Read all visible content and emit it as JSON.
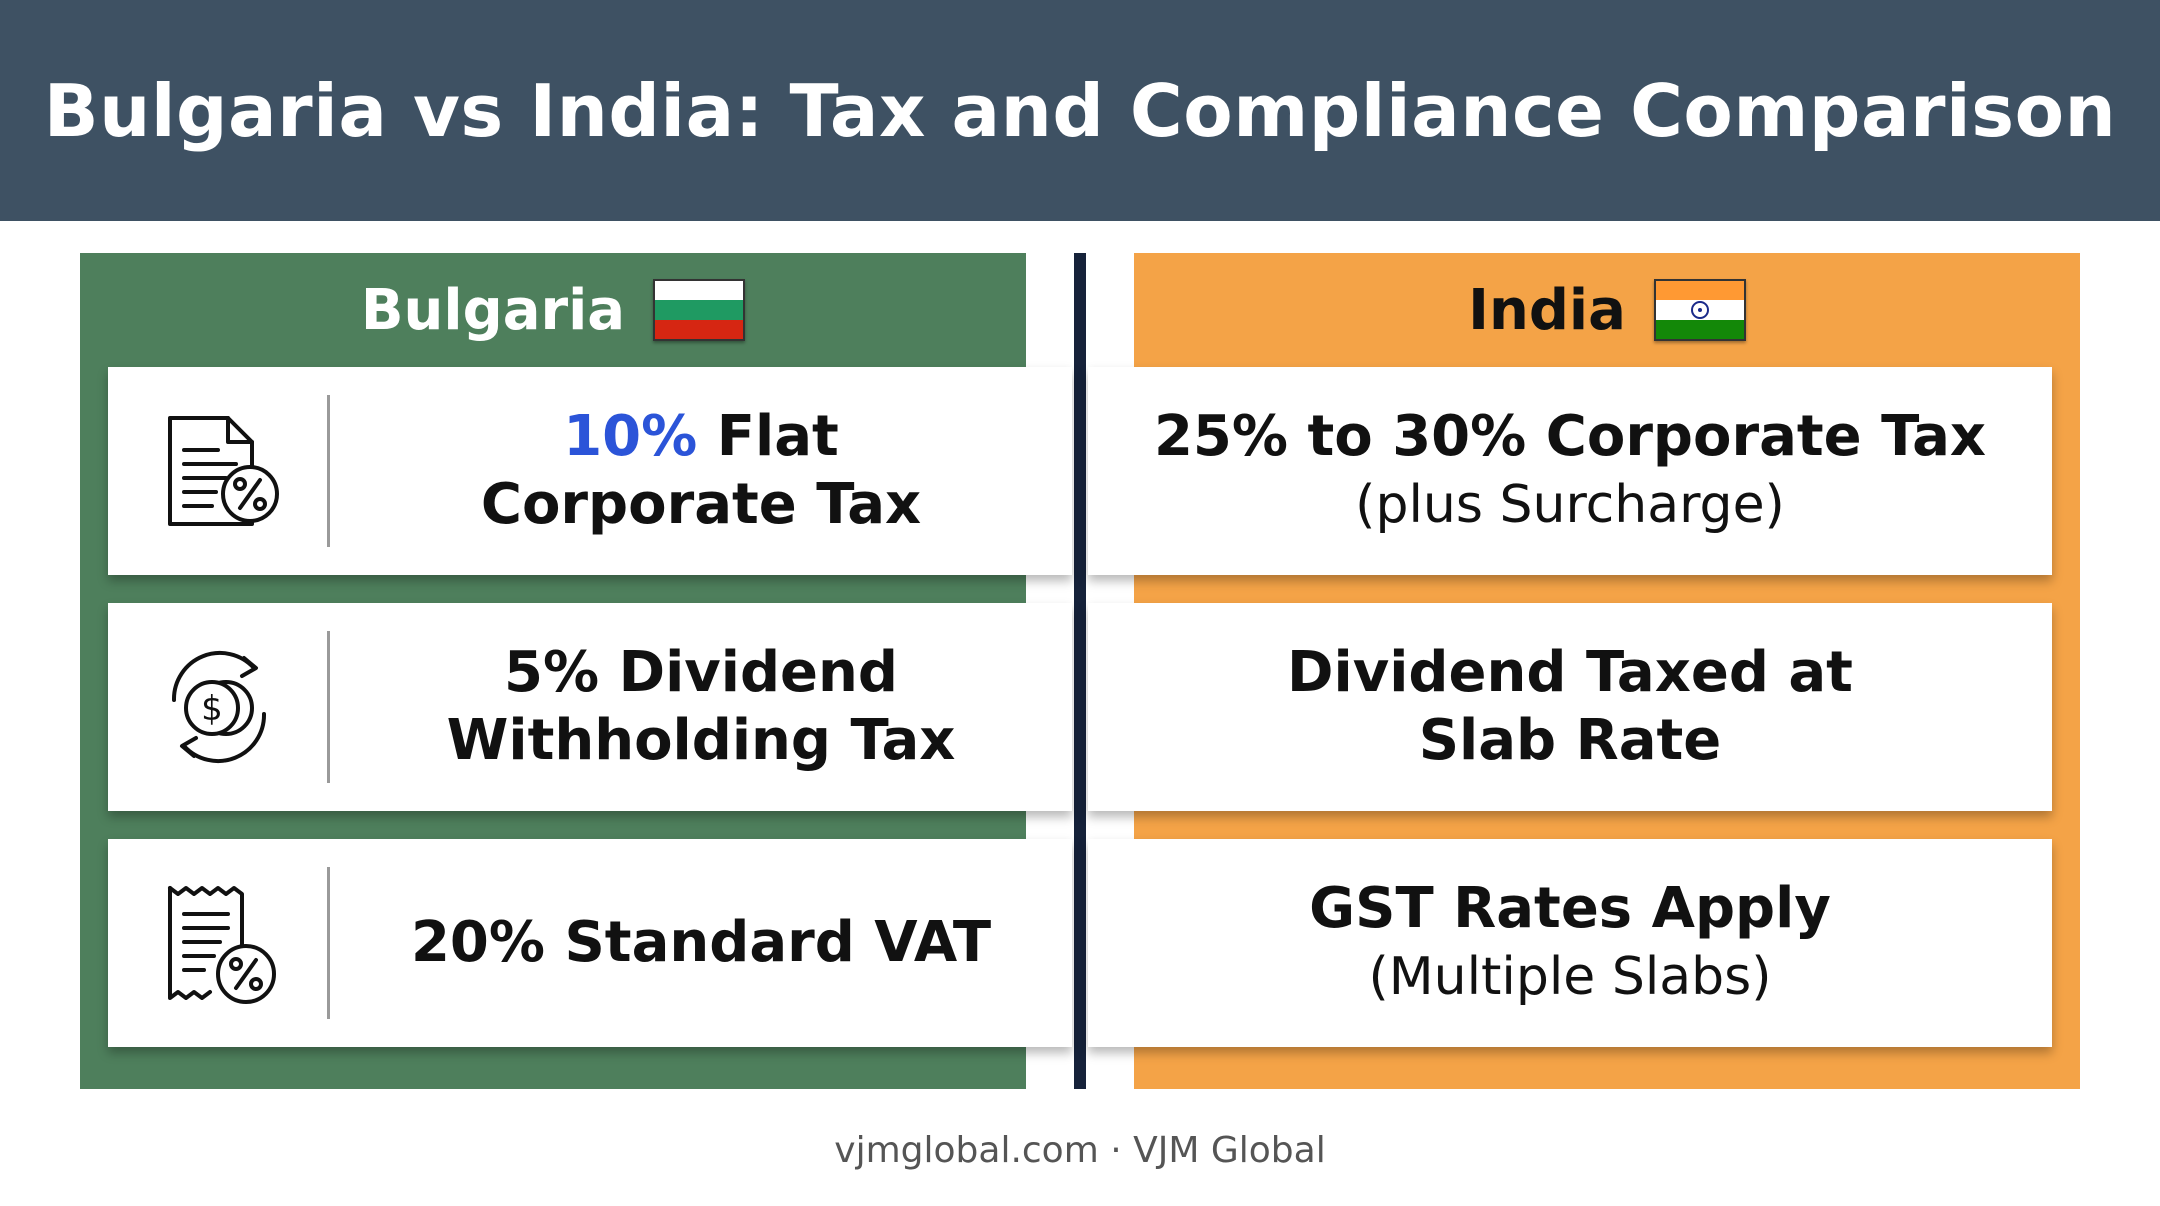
{
  "title": "Bulgaria vs India: Tax and Compliance Comparison",
  "colors": {
    "header_bg": "#3e5163",
    "bulgaria_panel": "#4e7f5c",
    "india_panel": "#f4a347",
    "divider": "#16223a",
    "accent": "#2b54d8"
  },
  "bulgaria": {
    "name": "Bulgaria",
    "flag_icon": "bulgaria-flag-icon",
    "rows": [
      {
        "icon": "tax-document-percent-icon",
        "highlight": "10%",
        "line1_rest": " Flat",
        "line2": "Corporate Tax"
      },
      {
        "icon": "dividend-coin-cycle-icon",
        "line1": "5% Dividend",
        "line2": "Withholding Tax"
      },
      {
        "icon": "receipt-percent-icon",
        "line1": "20% Standard VAT"
      }
    ]
  },
  "india": {
    "name": "India",
    "flag_icon": "india-flag-icon",
    "rows": [
      {
        "line1": "25% to 30% Corporate Tax",
        "line2": "(plus Surcharge)"
      },
      {
        "line1": "Dividend Taxed at",
        "line2": "Slab Rate"
      },
      {
        "line1": "GST Rates Apply",
        "line2": "(Multiple Slabs)"
      }
    ]
  },
  "footer": "vjmglobal.com · VJM Global"
}
